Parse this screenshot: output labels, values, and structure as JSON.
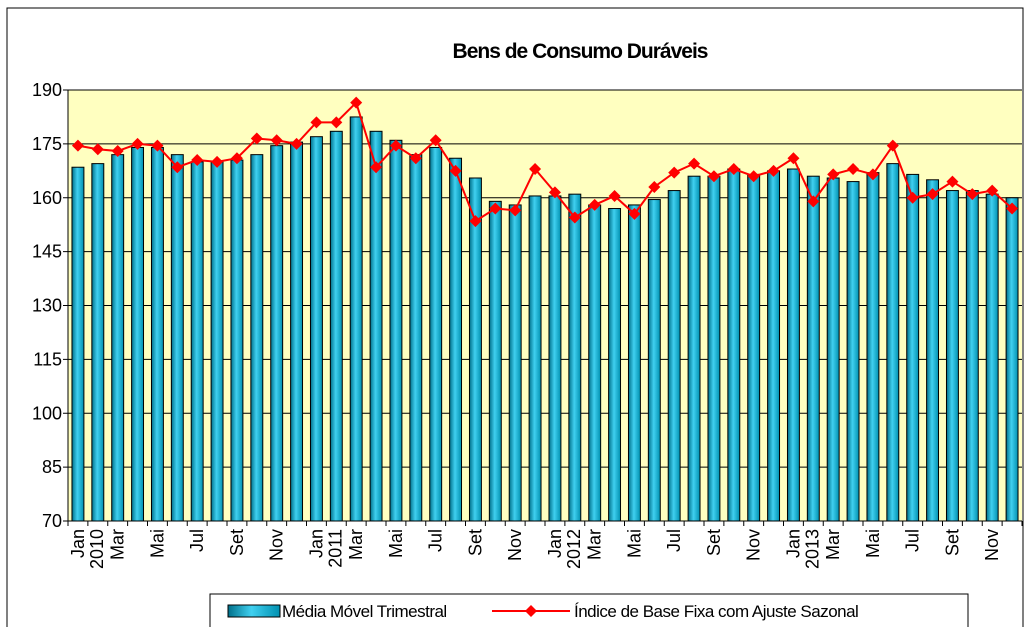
{
  "chart_data": {
    "type": "bar-line",
    "title": "Bens de Consumo Duráveis",
    "categories": [
      "Jan 2010",
      null,
      "Mar",
      null,
      "Mai",
      null,
      "Jul",
      null,
      "Set",
      null,
      "Nov",
      null,
      "Jan 2011",
      null,
      "Mar",
      null,
      "Mai",
      null,
      "Jul",
      null,
      "Set",
      null,
      "Nov",
      null,
      "Jan 2012",
      null,
      "Mar",
      null,
      "Mai",
      null,
      "Jul",
      null,
      "Set",
      null,
      "Nov",
      null,
      "Jan 2013",
      null,
      "Mar",
      null,
      "Mai",
      null,
      "Jul",
      null,
      "Set",
      null,
      "Nov",
      null
    ],
    "series": [
      {
        "name": "Média Móvel Trimestral",
        "type": "bar",
        "color": "#00a0c0",
        "values": [
          168.5,
          169.5,
          172,
          174,
          174,
          172,
          170,
          170,
          170.5,
          172,
          174.5,
          175.5,
          177,
          178.5,
          182.5,
          178.5,
          176,
          172,
          174,
          171,
          165.5,
          159,
          158,
          160.5,
          160.5,
          161,
          158,
          157,
          158,
          159.5,
          162,
          166,
          166,
          168,
          166.5,
          167.5,
          168,
          166,
          165.5,
          164.5,
          167,
          169.5,
          166.5,
          165,
          162,
          162,
          161,
          160
        ]
      },
      {
        "name": "Índice de Base Fixa com Ajuste Sazonal",
        "type": "line",
        "color": "#ff0000",
        "values": [
          174.5,
          173.5,
          173,
          175,
          174.5,
          168.5,
          170.5,
          170,
          171,
          176.5,
          176,
          175,
          181,
          181,
          186.5,
          168.5,
          174.5,
          171,
          176,
          167.5,
          153.5,
          157,
          156.5,
          168,
          161.5,
          154.5,
          158,
          160.5,
          155.5,
          163,
          167,
          169.5,
          166,
          168,
          166,
          167.5,
          171,
          159,
          166.5,
          168,
          166.5,
          174.5,
          160,
          161,
          164.5,
          161,
          162,
          157
        ]
      }
    ],
    "ylim": [
      70,
      190
    ],
    "yticks": [
      70,
      85,
      100,
      115,
      130,
      145,
      160,
      175,
      190
    ],
    "grid": true,
    "legend": "bottom"
  }
}
